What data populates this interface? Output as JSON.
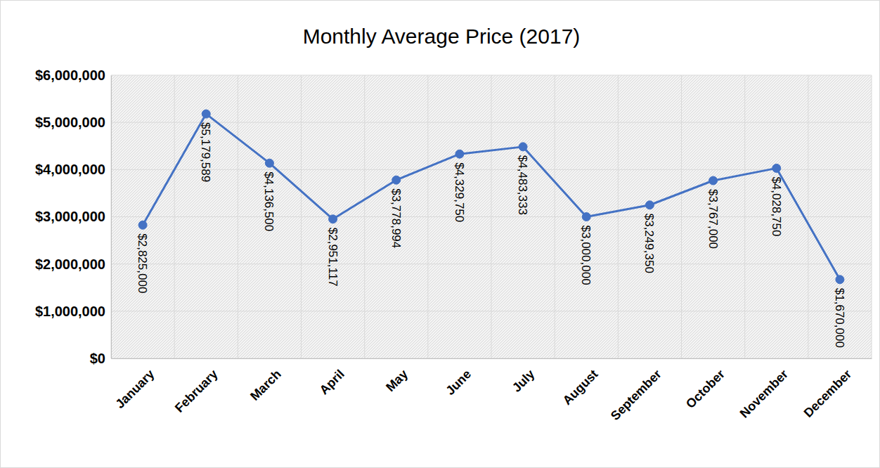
{
  "chart_data": {
    "type": "line",
    "title": "Monthly Average Price (2017)",
    "categories": [
      "January",
      "February",
      "March",
      "April",
      "May",
      "June",
      "July",
      "August",
      "September",
      "October",
      "November",
      "December"
    ],
    "values": [
      2825000,
      5179589,
      4136500,
      2951117,
      3778994,
      4329750,
      4483333,
      3000000,
      3249350,
      3767000,
      4028750,
      1670000
    ],
    "value_labels": [
      "$2,825,000",
      "$5,179,589",
      "$4,136,500",
      "$2,951,117",
      "$3,778,994",
      "$4,329,750",
      "$4,483,333",
      "$3,000,000",
      "$3,249,350",
      "$3,767,000",
      "$4,028,750",
      "$1,670,000"
    ],
    "color": "#4472c4",
    "marker": "circle",
    "data_labels": true,
    "grid": true,
    "ylim": [
      0,
      6000000
    ],
    "yticks": [
      {
        "value": 0,
        "label": "$0"
      },
      {
        "value": 1000000,
        "label": "$1,000,000"
      },
      {
        "value": 2000000,
        "label": "$2,000,000"
      },
      {
        "value": 3000000,
        "label": "$3,000,000"
      },
      {
        "value": 4000000,
        "label": "$4,000,000"
      },
      {
        "value": 5000000,
        "label": "$5,000,000"
      },
      {
        "value": 6000000,
        "label": "$6,000,000"
      }
    ]
  }
}
